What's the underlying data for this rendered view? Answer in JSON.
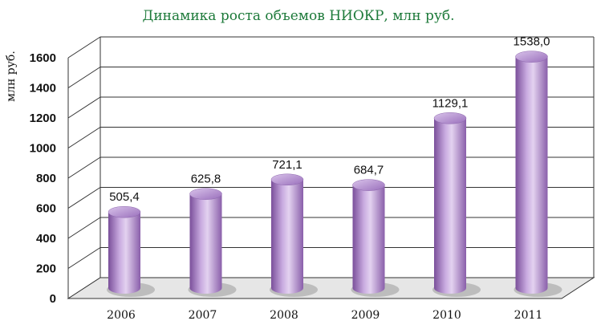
{
  "chart_data": {
    "type": "bar",
    "title": "Динамика роста объемов НИОКР, млн руб.",
    "ylabel": "млн руб.",
    "xlabel": "",
    "categories": [
      "2006",
      "2007",
      "2008",
      "2009",
      "2010",
      "2011"
    ],
    "values": [
      505.4,
      625.8,
      721.1,
      684.7,
      1129.1,
      1538.0
    ],
    "data_labels": [
      "505,4",
      "625,8",
      "721,1",
      "684,7",
      "1129,1",
      "1538,0"
    ],
    "y_ticks": [
      0,
      200,
      400,
      600,
      800,
      1000,
      1200,
      1400,
      1600
    ],
    "ylim": [
      0,
      1600
    ],
    "grid": true,
    "legend": "none",
    "style": "3d-cylinder",
    "bar_color": "#b591cf"
  }
}
